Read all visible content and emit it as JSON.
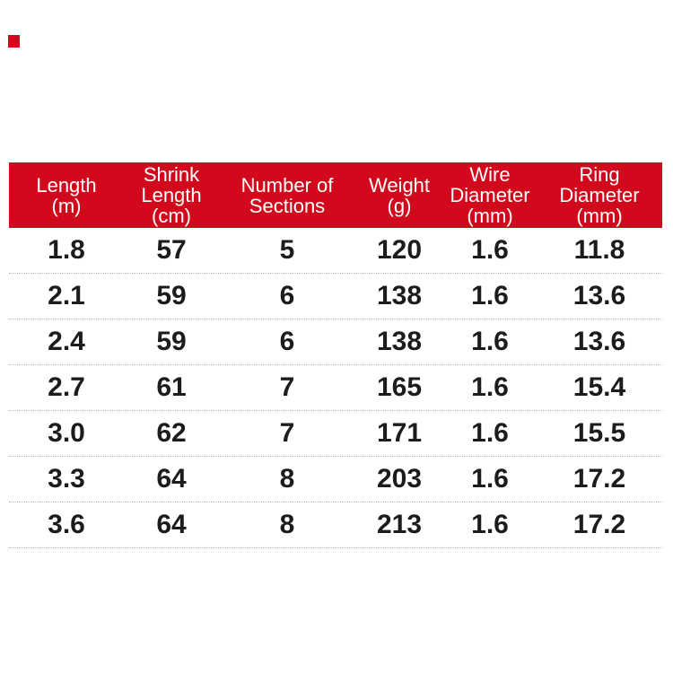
{
  "page": {
    "background_color": "#ffffff",
    "accent_red": "#d2091c",
    "body_text_color": "#1c1c1c",
    "separator_color": "#b9b9b9"
  },
  "corner_mark": {
    "color": "#d2091c"
  },
  "table": {
    "header": {
      "bg_color": "#d2091c",
      "text_color": "#ffffff",
      "columns": [
        {
          "label": "Length\n(m)"
        },
        {
          "label": "Shrink\nLength\n(cm)"
        },
        {
          "label": "Number of\nSections"
        },
        {
          "label": "Weight\n(g)"
        },
        {
          "label": "Wire\nDiameter\n(mm)"
        },
        {
          "label": "Ring\nDiameter\n(mm)"
        }
      ]
    },
    "rows": [
      [
        "1.8",
        "57",
        "5",
        "120",
        "1.6",
        "11.8"
      ],
      [
        "2.1",
        "59",
        "6",
        "138",
        "1.6",
        "13.6"
      ],
      [
        "2.4",
        "59",
        "6",
        "138",
        "1.6",
        "13.6"
      ],
      [
        "2.7",
        "61",
        "7",
        "165",
        "1.6",
        "15.4"
      ],
      [
        "3.0",
        "62",
        "7",
        "171",
        "1.6",
        "15.5"
      ],
      [
        "3.3",
        "64",
        "8",
        "203",
        "1.6",
        "17.2"
      ],
      [
        "3.6",
        "64",
        "8",
        "213",
        "1.6",
        "17.2"
      ]
    ]
  },
  "chart_data": {
    "type": "table",
    "title": "",
    "columns": [
      "Length (m)",
      "Shrink Length (cm)",
      "Number of Sections",
      "Weight (g)",
      "Wire Diameter (mm)",
      "Ring Diameter (mm)"
    ],
    "rows": [
      [
        1.8,
        57,
        5,
        120,
        1.6,
        11.8
      ],
      [
        2.1,
        59,
        6,
        138,
        1.6,
        13.6
      ],
      [
        2.4,
        59,
        6,
        138,
        1.6,
        13.6
      ],
      [
        2.7,
        61,
        7,
        165,
        1.6,
        15.4
      ],
      [
        3.0,
        62,
        7,
        171,
        1.6,
        15.5
      ],
      [
        3.3,
        64,
        8,
        203,
        1.6,
        17.2
      ],
      [
        3.6,
        64,
        8,
        213,
        1.6,
        17.2
      ]
    ]
  }
}
